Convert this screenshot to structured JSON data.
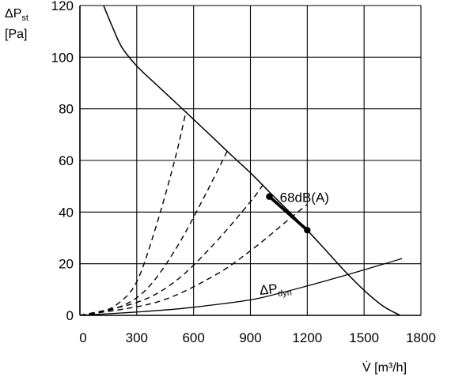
{
  "chart_data": {
    "type": "line",
    "title": "",
    "xlabel": "V̇ [m³/h]",
    "ylabel": "ΔPst [Pa]",
    "ylabel_parts": {
      "main": "ΔP",
      "sub": "st",
      "unit": "[Pa]"
    },
    "xlim": [
      0,
      1800
    ],
    "ylim": [
      0,
      120
    ],
    "x_ticks": [
      "0",
      "300",
      "600",
      "900",
      "1200",
      "1500",
      "1800"
    ],
    "y_ticks": [
      "0",
      "20",
      "40",
      "60",
      "80",
      "100",
      "120"
    ],
    "grid": true,
    "legend": "none",
    "series": [
      {
        "role": "fan-curve",
        "style": "solid",
        "points": [
          [
            125,
            120
          ],
          [
            170,
            112
          ],
          [
            220,
            104
          ],
          [
            300,
            96.6
          ],
          [
            400,
            89.6
          ],
          [
            500,
            82.8
          ],
          [
            600,
            75.9
          ],
          [
            700,
            69
          ],
          [
            800,
            62
          ],
          [
            900,
            55.2
          ],
          [
            1000,
            47.8
          ],
          [
            1100,
            40.5
          ],
          [
            1200,
            33
          ],
          [
            1300,
            25
          ],
          [
            1400,
            17
          ],
          [
            1500,
            9.7
          ],
          [
            1600,
            3.6
          ],
          [
            1690,
            0
          ]
        ]
      },
      {
        "role": "operating-range",
        "style": "bold",
        "points": [
          [
            1000,
            46
          ],
          [
            1200,
            33
          ]
        ]
      },
      {
        "role": "system-curve-1",
        "style": "dashed",
        "points": [
          [
            0,
            0
          ],
          [
            100,
            1
          ],
          [
            200,
            4.5
          ],
          [
            300,
            13
          ],
          [
            400,
            34
          ],
          [
            500,
            60
          ],
          [
            560,
            79
          ]
        ]
      },
      {
        "role": "system-curve-2",
        "style": "dashed",
        "points": [
          [
            0,
            0
          ],
          [
            200,
            3
          ],
          [
            350,
            10
          ],
          [
            500,
            25
          ],
          [
            650,
            45
          ],
          [
            780,
            64
          ]
        ]
      },
      {
        "role": "system-curve-3",
        "style": "dashed",
        "points": [
          [
            0,
            0
          ],
          [
            300,
            5
          ],
          [
            500,
            13
          ],
          [
            700,
            27
          ],
          [
            900,
            44
          ],
          [
            970,
            51
          ]
        ]
      },
      {
        "role": "system-curve-4",
        "style": "dashed",
        "points": [
          [
            0,
            0
          ],
          [
            400,
            5
          ],
          [
            700,
            15
          ],
          [
            900,
            25
          ],
          [
            1100,
            37
          ],
          [
            1200,
            43
          ]
        ]
      },
      {
        "role": "dynamic-pressure",
        "style": "solid-thin",
        "points": [
          [
            0,
            0
          ],
          [
            300,
            1.3
          ],
          [
            500,
            2.4
          ],
          [
            700,
            4
          ],
          [
            900,
            6
          ],
          [
            1000,
            7.6
          ],
          [
            1200,
            11.4
          ],
          [
            1400,
            15.5
          ],
          [
            1600,
            19.8
          ],
          [
            1700,
            22
          ]
        ]
      }
    ],
    "markers": [
      [
        1000,
        46
      ],
      [
        1200,
        33
      ]
    ],
    "annotations": [
      {
        "text": "68dB(A)",
        "x": 1055,
        "y": 44
      },
      {
        "text": "ΔPdyn",
        "main": "ΔP",
        "sub": "dyn",
        "x": 950,
        "y": 8
      }
    ]
  }
}
